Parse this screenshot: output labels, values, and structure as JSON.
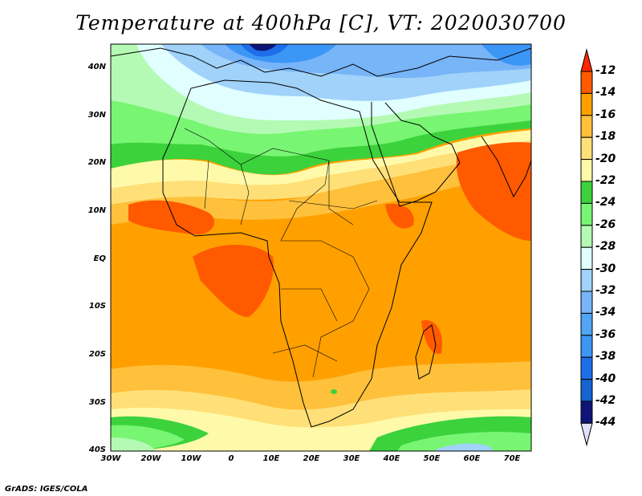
{
  "title": "Temperature at 400hPa [C], VT: 2020030700",
  "y_axis_labels": [
    "40N",
    "30N",
    "20N",
    "10N",
    "EQ",
    "10S",
    "20S",
    "30S",
    "40S"
  ],
  "x_axis_labels": [
    "30W",
    "20W",
    "10W",
    "0",
    "10E",
    "20E",
    "30E",
    "40E",
    "50E",
    "60E",
    "70E"
  ],
  "colorbar": {
    "labels": [
      "-12",
      "-14",
      "-16",
      "-18",
      "-20",
      "-22",
      "-24",
      "-26",
      "-28",
      "-30",
      "-32",
      "-34",
      "-36",
      "-38",
      "-40",
      "-42",
      "-44"
    ],
    "colors": [
      "#ff5a00",
      "#ffa000",
      "#ffc03c",
      "#ffe078",
      "#fffaaa",
      "#3cd23c",
      "#78f573",
      "#b4fab4",
      "#e1ffff",
      "#a0d2fa",
      "#78b4f8",
      "#50a5f5",
      "#3c96f5",
      "#1e6eeb",
      "#1464d2",
      "#0f1478"
    ],
    "over_color": "#ff2800",
    "under_color": "#e0e0ff"
  },
  "footer": "GrADS: IGES/COLA"
}
